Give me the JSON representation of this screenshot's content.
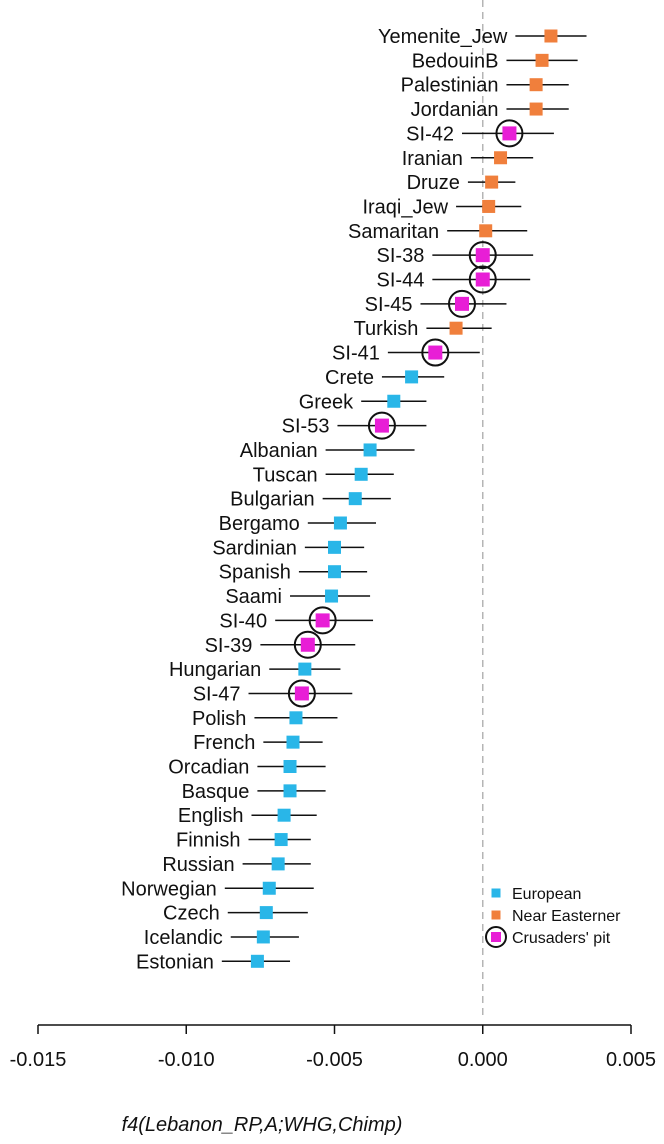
{
  "chart_data": {
    "type": "scatter",
    "xlabel": "f4(Lebanon_RP,A;WHG,Chimp)",
    "xlim": [
      -0.015,
      0.005
    ],
    "xticks": [
      "-0.015",
      "-0.010",
      "-0.005",
      "0.000",
      "0.005"
    ],
    "xtick_values": [
      -0.015,
      -0.01,
      -0.005,
      0.0,
      0.005
    ],
    "reference_line": 0.0,
    "colors": {
      "European": "#29b6e8",
      "Near Easterner": "#f07f3c",
      "Crusaders' pit": "#e81ed6"
    },
    "legend": {
      "placement": "bottom-right",
      "entries": [
        {
          "label": "European",
          "group": "European"
        },
        {
          "label": "Near Easterner",
          "group": "Near Easterner"
        },
        {
          "label": "Crusaders' pit",
          "group": "Crusaders' pit"
        }
      ]
    },
    "points": [
      {
        "label": "Yemenite_Jew",
        "group": "Near Easterner",
        "value": 0.0023,
        "low": 0.0011,
        "high": 0.0035
      },
      {
        "label": "BedouinB",
        "group": "Near Easterner",
        "value": 0.002,
        "low": 0.0008,
        "high": 0.0032
      },
      {
        "label": "Palestinian",
        "group": "Near Easterner",
        "value": 0.0018,
        "low": 0.0008,
        "high": 0.0029
      },
      {
        "label": "Jordanian",
        "group": "Near Easterner",
        "value": 0.0018,
        "low": 0.0008,
        "high": 0.0029
      },
      {
        "label": "SI-42",
        "group": "Crusaders' pit",
        "value": 0.0009,
        "low": -0.0007,
        "high": 0.0024
      },
      {
        "label": "Iranian",
        "group": "Near Easterner",
        "value": 0.0006,
        "low": -0.0004,
        "high": 0.0017
      },
      {
        "label": "Druze",
        "group": "Near Easterner",
        "value": 0.0003,
        "low": -0.0005,
        "high": 0.0011
      },
      {
        "label": "Iraqi_Jew",
        "group": "Near Easterner",
        "value": 0.0002,
        "low": -0.0009,
        "high": 0.0013
      },
      {
        "label": "Samaritan",
        "group": "Near Easterner",
        "value": 0.0001,
        "low": -0.0012,
        "high": 0.0015
      },
      {
        "label": "SI-38",
        "group": "Crusaders' pit",
        "value": 0.0,
        "low": -0.0017,
        "high": 0.0017
      },
      {
        "label": "SI-44",
        "group": "Crusaders' pit",
        "value": 0.0,
        "low": -0.0017,
        "high": 0.0016
      },
      {
        "label": "SI-45",
        "group": "Crusaders' pit",
        "value": -0.0007,
        "low": -0.0021,
        "high": 0.0008
      },
      {
        "label": "Turkish",
        "group": "Near Easterner",
        "value": -0.0009,
        "low": -0.0019,
        "high": 0.0003
      },
      {
        "label": "SI-41",
        "group": "Crusaders' pit",
        "value": -0.0016,
        "low": -0.0032,
        "high": -0.0001
      },
      {
        "label": "Crete",
        "group": "European",
        "value": -0.0024,
        "low": -0.0034,
        "high": -0.0013
      },
      {
        "label": "Greek",
        "group": "European",
        "value": -0.003,
        "low": -0.0041,
        "high": -0.0019
      },
      {
        "label": "SI-53",
        "group": "Crusaders' pit",
        "value": -0.0034,
        "low": -0.0049,
        "high": -0.0019
      },
      {
        "label": "Albanian",
        "group": "European",
        "value": -0.0038,
        "low": -0.0053,
        "high": -0.0023
      },
      {
        "label": "Tuscan",
        "group": "European",
        "value": -0.0041,
        "low": -0.0053,
        "high": -0.003
      },
      {
        "label": "Bulgarian",
        "group": "European",
        "value": -0.0043,
        "low": -0.0054,
        "high": -0.0031
      },
      {
        "label": "Bergamo",
        "group": "European",
        "value": -0.0048,
        "low": -0.0059,
        "high": -0.0036
      },
      {
        "label": "Sardinian",
        "group": "European",
        "value": -0.005,
        "low": -0.006,
        "high": -0.004
      },
      {
        "label": "Spanish",
        "group": "European",
        "value": -0.005,
        "low": -0.0062,
        "high": -0.0039
      },
      {
        "label": "Saami",
        "group": "European",
        "value": -0.0051,
        "low": -0.0065,
        "high": -0.0038
      },
      {
        "label": "SI-40",
        "group": "Crusaders' pit",
        "value": -0.0054,
        "low": -0.007,
        "high": -0.0037
      },
      {
        "label": "SI-39",
        "group": "Crusaders' pit",
        "value": -0.0059,
        "low": -0.0075,
        "high": -0.0043
      },
      {
        "label": "Hungarian",
        "group": "European",
        "value": -0.006,
        "low": -0.0072,
        "high": -0.0048
      },
      {
        "label": "SI-47",
        "group": "Crusaders' pit",
        "value": -0.0061,
        "low": -0.0079,
        "high": -0.0044
      },
      {
        "label": "Polish",
        "group": "European",
        "value": -0.0063,
        "low": -0.0077,
        "high": -0.0049
      },
      {
        "label": "French",
        "group": "European",
        "value": -0.0064,
        "low": -0.0074,
        "high": -0.0054
      },
      {
        "label": "Orcadian",
        "group": "European",
        "value": -0.0065,
        "low": -0.0076,
        "high": -0.0053
      },
      {
        "label": "Basque",
        "group": "European",
        "value": -0.0065,
        "low": -0.0076,
        "high": -0.0053
      },
      {
        "label": "English",
        "group": "European",
        "value": -0.0067,
        "low": -0.0078,
        "high": -0.0056
      },
      {
        "label": "Finnish",
        "group": "European",
        "value": -0.0068,
        "low": -0.0079,
        "high": -0.0058
      },
      {
        "label": "Russian",
        "group": "European",
        "value": -0.0069,
        "low": -0.0081,
        "high": -0.0058
      },
      {
        "label": "Norwegian",
        "group": "European",
        "value": -0.0072,
        "low": -0.0087,
        "high": -0.0057
      },
      {
        "label": "Czech",
        "group": "European",
        "value": -0.0073,
        "low": -0.0086,
        "high": -0.0059
      },
      {
        "label": "Icelandic",
        "group": "European",
        "value": -0.0074,
        "low": -0.0085,
        "high": -0.0062
      },
      {
        "label": "Estonian",
        "group": "European",
        "value": -0.0076,
        "low": -0.0088,
        "high": -0.0065
      }
    ]
  }
}
